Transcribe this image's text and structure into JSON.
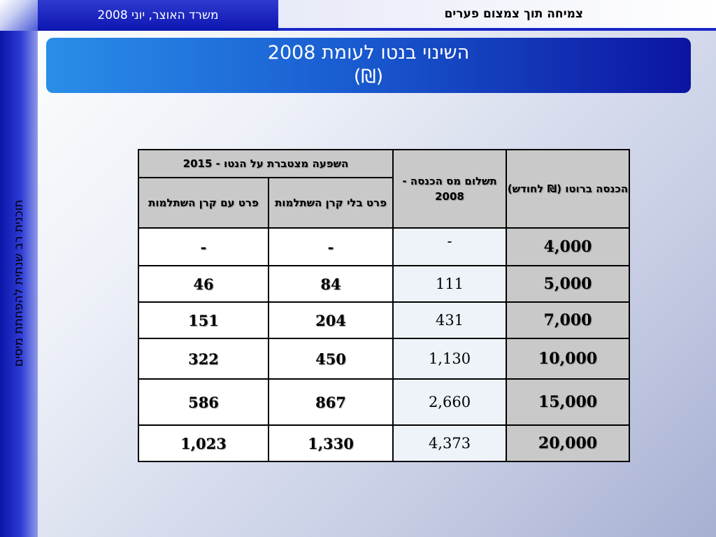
{
  "header": {
    "left_text": "משרד האוצר, יוני  2008",
    "right_text": "צמיחה תוך צמצום פערים"
  },
  "sidebar": {
    "vertical_text": "תוכנית רב שנתית להפחתת מיסים"
  },
  "title": {
    "line1": "השינוי בנטו לעומת 2008",
    "line2": "(₪)"
  },
  "table": {
    "headers": {
      "gross_income": "הכנסה ברוטו (₪ לחודש)",
      "tax_payment": "תשלום מס הכנסה - 2008",
      "cumulative": "השפעה מצטברת על הנטו - 2015",
      "no_pension": "פרט בלי קרן השתלמות",
      "with_pension": "פרט עם קרן השתלמות"
    },
    "rows": [
      {
        "income": "4,000",
        "tax": "-",
        "no_pension": "-",
        "with_pension": "-"
      },
      {
        "income": "5,000",
        "tax": "111",
        "no_pension": "84",
        "with_pension": "46"
      },
      {
        "income": "7,000",
        "tax": "431",
        "no_pension": "204",
        "with_pension": "151"
      },
      {
        "income": "10,000",
        "tax": "1,130",
        "no_pension": "450",
        "with_pension": "322"
      },
      {
        "income": "15,000",
        "tax": "2,660",
        "no_pension": "867",
        "with_pension": "586"
      },
      {
        "income": "20,000",
        "tax": "4,373",
        "no_pension": "1,330",
        "with_pension": "1,023"
      }
    ]
  }
}
